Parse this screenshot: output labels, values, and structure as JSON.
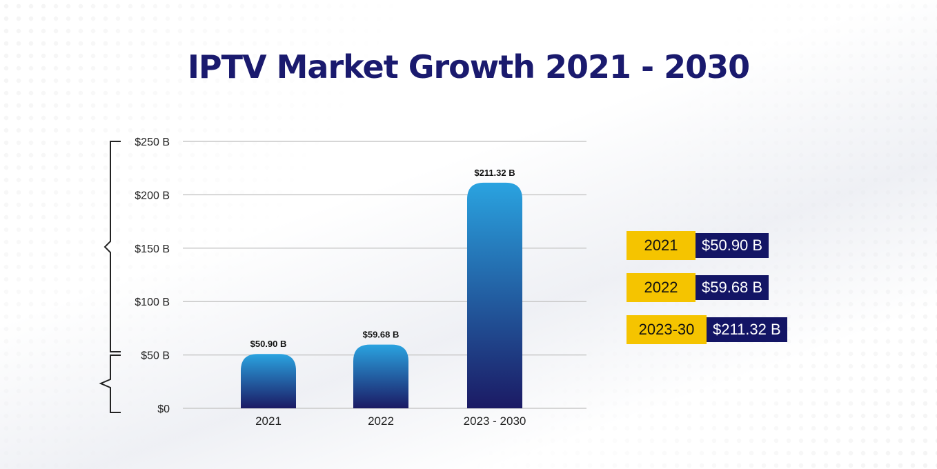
{
  "title": "IPTV Market Growth 2021 - 2030",
  "colors": {
    "title": "#1a1a6e",
    "bar_top": "#2aa3e0",
    "bar_bottom": "#1b1a64",
    "gridline": "#c9c9c9",
    "legend_year_bg": "#f5c400",
    "legend_value_bg": "#131565"
  },
  "chart_data": {
    "type": "bar",
    "categories": [
      "2021",
      "2022",
      "2023 - 2030"
    ],
    "values": [
      50.9,
      59.68,
      211.32
    ],
    "data_labels": [
      "$50.90 B",
      "$59.68 B",
      "$211.32 B"
    ],
    "ylim": [
      0,
      250
    ],
    "yticks": [
      0,
      50,
      100,
      150,
      200,
      250
    ],
    "ytick_labels": [
      "$0",
      "$50 B",
      "$100 B",
      "$150 B",
      "$200 B",
      "$250 B"
    ],
    "grid": true,
    "xlabel": "",
    "ylabel": ""
  },
  "legend": [
    {
      "year": "2021",
      "value": "$50.90 B"
    },
    {
      "year": "2022",
      "value": "$59.68 B"
    },
    {
      "year": "2023-30",
      "value": "$211.32 B"
    }
  ]
}
